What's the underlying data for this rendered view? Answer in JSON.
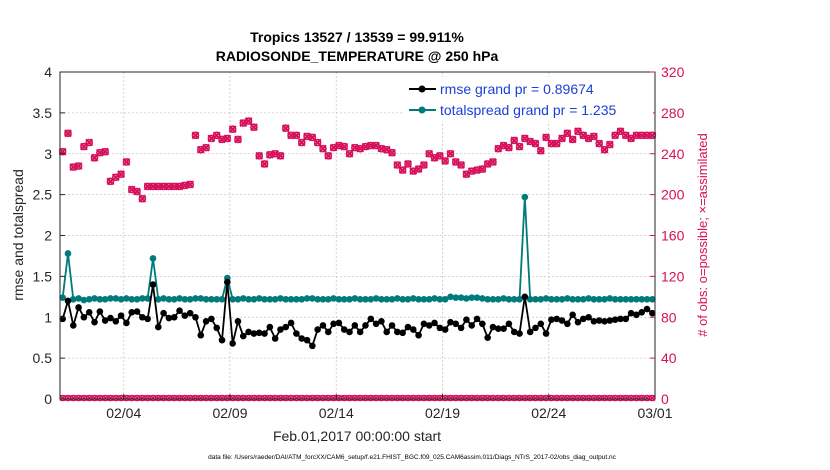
{
  "chart_data": {
    "type": "line",
    "title_line1": "Tropics 13527 / 13539 = 99.911%",
    "title_line2": "RADIOSONDE_TEMPERATURE @ 250 hPa",
    "xlabel": "Feb.01,2017 00:00:00 start",
    "ylabel_left": "rmse and totalspread",
    "ylabel_right": "# of obs: o=possible; ×=assimilated",
    "footer": "data file: /Users/raeder/DAI/ATM_forcXX/CAM6_setup/f.e21.FHIST_BGC.f09_025.CAM6assim.011/Diags_NTrS_2017-02/obs_diag_output.nc",
    "x_range": [
      0.5,
      28.5
    ],
    "ylim_left": [
      0,
      4
    ],
    "ylim_right": [
      0,
      320
    ],
    "x_ticks": [
      {
        "v": 3.5,
        "label": "02/04"
      },
      {
        "v": 8.5,
        "label": "02/09"
      },
      {
        "v": 13.5,
        "label": "02/14"
      },
      {
        "v": 18.5,
        "label": "02/19"
      },
      {
        "v": 23.5,
        "label": "02/24"
      },
      {
        "v": 28.5,
        "label": "03/01"
      }
    ],
    "y_ticks_left": [
      "0",
      "0.5",
      "1",
      "1.5",
      "2",
      "2.5",
      "3",
      "3.5",
      "4"
    ],
    "y_ticks_right": [
      "0",
      "40",
      "80",
      "120",
      "160",
      "200",
      "240",
      "280",
      "320"
    ],
    "colors": {
      "rmse": "#000000",
      "spread": "#007a7a",
      "obs": "#d6105a",
      "legend_text": "#1a3fd6",
      "right_axis": "#d6105a"
    },
    "x": [
      0.625,
      0.875,
      1.125,
      1.375,
      1.625,
      1.875,
      2.125,
      2.375,
      2.625,
      2.875,
      3.125,
      3.375,
      3.625,
      3.875,
      4.125,
      4.375,
      4.625,
      4.875,
      5.125,
      5.375,
      5.625,
      5.875,
      6.125,
      6.375,
      6.625,
      6.875,
      7.125,
      7.375,
      7.625,
      7.875,
      8.125,
      8.375,
      8.625,
      8.875,
      9.125,
      9.375,
      9.625,
      9.875,
      10.125,
      10.375,
      10.625,
      10.875,
      11.125,
      11.375,
      11.625,
      11.875,
      12.125,
      12.375,
      12.625,
      12.875,
      13.125,
      13.375,
      13.625,
      13.875,
      14.125,
      14.375,
      14.625,
      14.875,
      15.125,
      15.375,
      15.625,
      15.875,
      16.125,
      16.375,
      16.625,
      16.875,
      17.125,
      17.375,
      17.625,
      17.875,
      18.125,
      18.375,
      18.625,
      18.875,
      19.125,
      19.375,
      19.625,
      19.875,
      20.125,
      20.375,
      20.625,
      20.875,
      21.125,
      21.375,
      21.625,
      21.875,
      22.125,
      22.375,
      22.625,
      22.875,
      23.125,
      23.375,
      23.625,
      23.875,
      24.125,
      24.375,
      24.625,
      24.875,
      25.125,
      25.375,
      25.625,
      25.875,
      26.125,
      26.375,
      26.625,
      26.875,
      27.125,
      27.375,
      27.625,
      27.875,
      28.125,
      28.375
    ],
    "series": [
      {
        "name": "rmse grand pr = 0.89674",
        "legend_label": "rmse grand pr = 0.89674",
        "values": [
          0.98,
          1.2,
          0.9,
          1.12,
          1.0,
          1.06,
          0.94,
          1.07,
          0.96,
          0.99,
          0.95,
          1.02,
          0.93,
          1.06,
          1.07,
          1.0,
          0.98,
          1.4,
          0.88,
          1.05,
          0.99,
          1.0,
          1.08,
          1.02,
          1.05,
          1.0,
          0.78,
          0.95,
          0.98,
          0.87,
          0.72,
          1.43,
          0.68,
          0.95,
          0.77,
          0.82,
          0.8,
          0.81,
          0.8,
          0.88,
          0.74,
          0.85,
          0.88,
          0.93,
          0.8,
          0.74,
          0.72,
          0.65,
          0.85,
          0.9,
          0.82,
          0.92,
          0.93,
          0.85,
          0.82,
          0.9,
          0.82,
          0.9,
          0.98,
          0.92,
          0.95,
          0.82,
          0.9,
          0.82,
          0.81,
          0.88,
          0.85,
          0.78,
          0.92,
          0.9,
          0.93,
          0.87,
          0.85,
          0.94,
          0.92,
          0.87,
          0.97,
          0.9,
          0.98,
          0.92,
          0.75,
          0.88,
          0.86,
          0.86,
          0.92,
          0.82,
          0.8,
          1.25,
          0.82,
          0.87,
          0.92,
          0.8,
          0.97,
          0.98,
          0.96,
          0.92,
          1.03,
          0.94,
          0.98,
          1.0,
          0.95,
          0.96,
          0.95,
          0.96,
          0.97,
          0.98,
          0.98,
          1.05,
          1.03,
          1.06,
          1.1,
          1.05
        ]
      },
      {
        "name": "totalspread grand pr = 1.235",
        "legend_label": "totalspread grand pr = 1.235",
        "values": [
          1.24,
          1.78,
          1.22,
          1.23,
          1.21,
          1.22,
          1.23,
          1.22,
          1.22,
          1.23,
          1.23,
          1.22,
          1.23,
          1.22,
          1.22,
          1.23,
          1.23,
          1.72,
          1.22,
          1.23,
          1.22,
          1.22,
          1.23,
          1.22,
          1.22,
          1.23,
          1.23,
          1.22,
          1.22,
          1.22,
          1.22,
          1.48,
          1.22,
          1.22,
          1.23,
          1.22,
          1.22,
          1.23,
          1.22,
          1.22,
          1.22,
          1.23,
          1.22,
          1.22,
          1.22,
          1.22,
          1.23,
          1.23,
          1.22,
          1.22,
          1.22,
          1.23,
          1.22,
          1.22,
          1.22,
          1.23,
          1.22,
          1.22,
          1.22,
          1.23,
          1.22,
          1.22,
          1.22,
          1.23,
          1.22,
          1.22,
          1.23,
          1.22,
          1.22,
          1.22,
          1.23,
          1.22,
          1.22,
          1.25,
          1.24,
          1.24,
          1.23,
          1.24,
          1.24,
          1.23,
          1.22,
          1.22,
          1.22,
          1.23,
          1.22,
          1.22,
          1.22,
          2.47,
          1.22,
          1.22,
          1.22,
          1.23,
          1.22,
          1.22,
          1.22,
          1.23,
          1.22,
          1.22,
          1.22,
          1.23,
          1.22,
          1.22,
          1.22,
          1.23,
          1.22,
          1.22,
          1.22,
          1.22,
          1.22,
          1.22,
          1.22,
          1.22
        ]
      },
      {
        "name": "obs possible",
        "axis": "right",
        "values": [
          242,
          260,
          227,
          228,
          247,
          251,
          236,
          241,
          242,
          213,
          217,
          220,
          232,
          205,
          203,
          196,
          208,
          208,
          208,
          208,
          208,
          208,
          208,
          209,
          210,
          258,
          244,
          246,
          255,
          258,
          254,
          255,
          264,
          254,
          270,
          272,
          266,
          238,
          230,
          239,
          240,
          238,
          265,
          258,
          258,
          251,
          257,
          256,
          251,
          245,
          238,
          246,
          248,
          247,
          240,
          246,
          245,
          247,
          248,
          248,
          245,
          244,
          241,
          229,
          224,
          230,
          223,
          225,
          229,
          240,
          236,
          238,
          233,
          240,
          232,
          229,
          220,
          223,
          224,
          225,
          230,
          232,
          245,
          248,
          246,
          253,
          247,
          255,
          252,
          250,
          243,
          256,
          250,
          250,
          255,
          260,
          254,
          262,
          258,
          255,
          257,
          250,
          244,
          249,
          258,
          262,
          258,
          255,
          258,
          258,
          258,
          258
        ]
      },
      {
        "name": "obs assimilated",
        "axis": "right",
        "values": [
          242,
          260,
          227,
          228,
          247,
          251,
          236,
          241,
          242,
          213,
          217,
          220,
          232,
          205,
          203,
          196,
          208,
          208,
          208,
          208,
          208,
          208,
          208,
          209,
          210,
          258,
          244,
          246,
          255,
          258,
          254,
          255,
          264,
          254,
          270,
          272,
          266,
          238,
          230,
          239,
          240,
          238,
          265,
          258,
          258,
          251,
          257,
          256,
          251,
          245,
          238,
          246,
          248,
          247,
          240,
          246,
          245,
          247,
          248,
          248,
          245,
          244,
          241,
          229,
          224,
          230,
          223,
          225,
          229,
          240,
          236,
          238,
          233,
          240,
          232,
          229,
          220,
          223,
          224,
          225,
          230,
          232,
          245,
          248,
          246,
          253,
          247,
          255,
          252,
          250,
          243,
          256,
          250,
          250,
          255,
          260,
          254,
          262,
          258,
          255,
          257,
          250,
          244,
          249,
          258,
          262,
          258,
          255,
          258,
          258,
          258,
          258
        ]
      }
    ]
  }
}
